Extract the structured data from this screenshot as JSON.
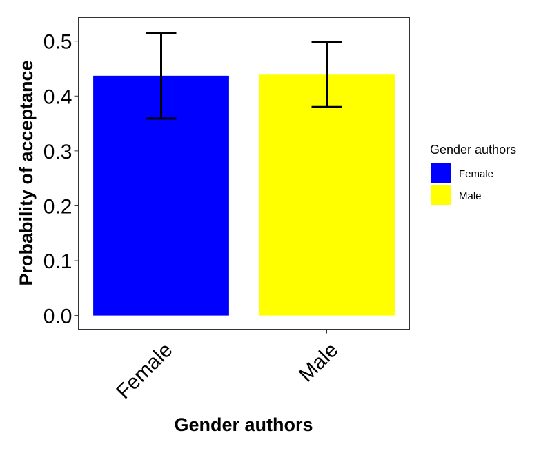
{
  "chart_data": {
    "type": "bar",
    "categories": [
      "Female",
      "Male"
    ],
    "values": [
      0.437,
      0.439
    ],
    "error_low": [
      0.359,
      0.38
    ],
    "error_high": [
      0.515,
      0.498
    ],
    "colors": [
      "#0000ff",
      "#ffff00"
    ],
    "xlabel": "Gender authors",
    "ylabel": "Probability of acceptance",
    "ylim": [
      -0.025,
      0.543
    ],
    "yticks": [
      0.0,
      0.1,
      0.2,
      0.3,
      0.4,
      0.5
    ],
    "ytick_labels": [
      "0.0",
      "0.1",
      "0.2",
      "0.3",
      "0.4",
      "0.5"
    ],
    "grid": false,
    "legend": {
      "title": "Gender authors",
      "position": "right",
      "entries": [
        "Female",
        "Male"
      ]
    }
  }
}
